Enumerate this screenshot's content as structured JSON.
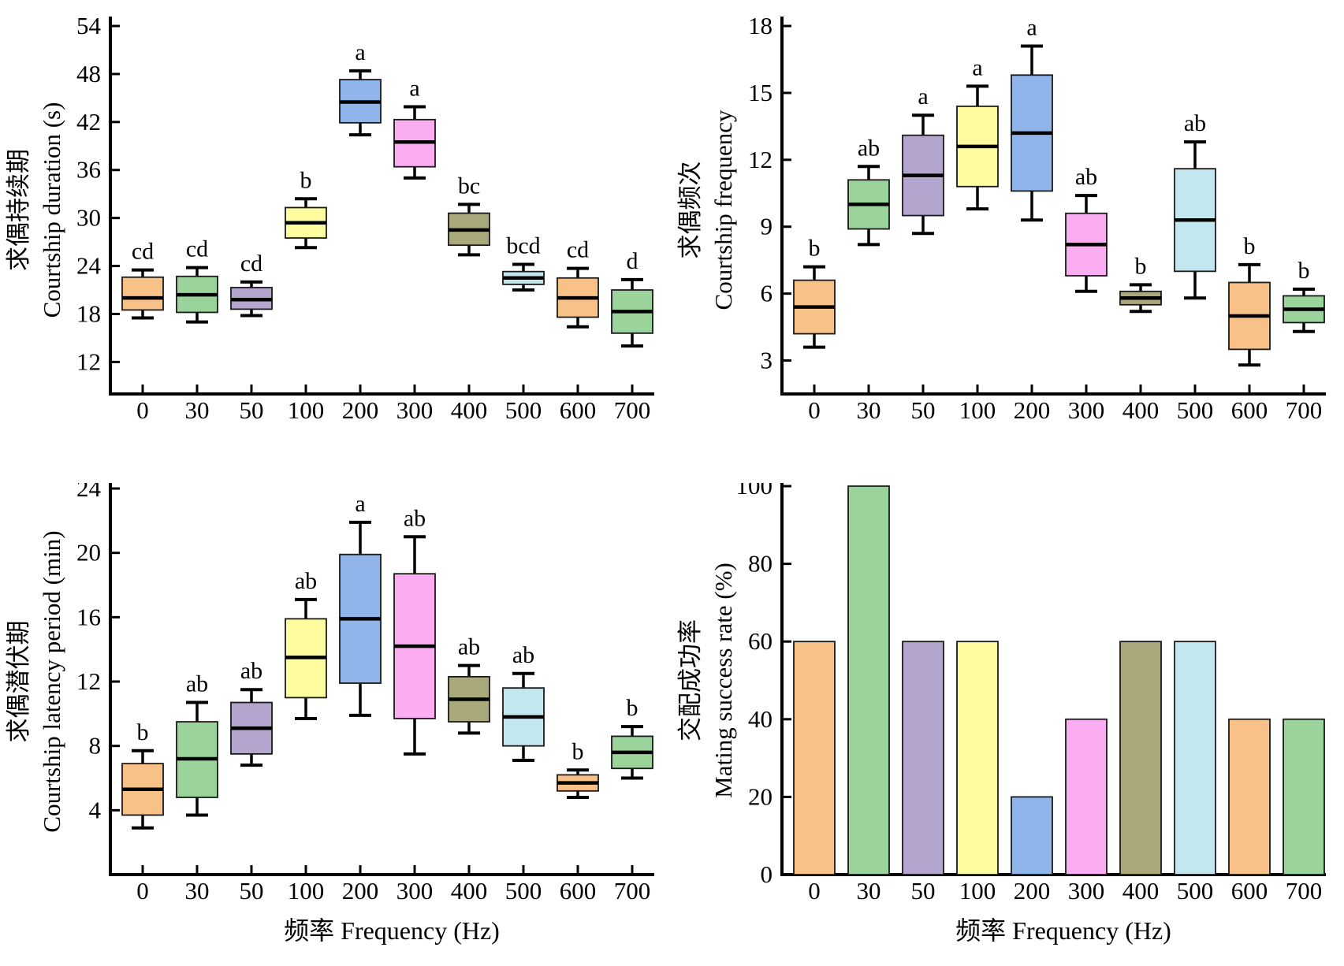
{
  "figure": {
    "xlabel": "频率 Frequency (Hz)",
    "categories": [
      "0",
      "30",
      "50",
      "100",
      "200",
      "300",
      "400",
      "500",
      "600",
      "700"
    ],
    "colors": [
      "#F8C188",
      "#9AD49A",
      "#B4A5CF",
      "#FDFDA0",
      "#8FB5EB",
      "#FBADF2",
      "#A9A87B",
      "#C2E7EE",
      "#F8C188",
      "#9AD49A"
    ],
    "axis_color": "#000000",
    "box_border_color": "#1a1a1a"
  },
  "chart_data": [
    {
      "id": "courtship-duration",
      "type": "box",
      "ylabel_cn": "求偶持续期",
      "ylabel_en": "Courtship duration (s)",
      "ylim": [
        8,
        54
      ],
      "yticks": [
        12,
        18,
        24,
        30,
        36,
        42,
        48,
        54
      ],
      "show_xlabel": false,
      "categories": [
        "0",
        "30",
        "50",
        "100",
        "200",
        "300",
        "400",
        "500",
        "600",
        "700"
      ],
      "boxes": [
        {
          "low": 17.5,
          "q1": 18.5,
          "median": 20.0,
          "q3": 22.6,
          "high": 23.5,
          "sig": "cd"
        },
        {
          "low": 17.0,
          "q1": 18.2,
          "median": 20.4,
          "q3": 22.7,
          "high": 23.8,
          "sig": "cd"
        },
        {
          "low": 17.8,
          "q1": 18.6,
          "median": 19.8,
          "q3": 21.3,
          "high": 22.0,
          "sig": "cd"
        },
        {
          "low": 26.3,
          "q1": 27.5,
          "median": 29.4,
          "q3": 31.3,
          "high": 32.4,
          "sig": "b"
        },
        {
          "low": 40.4,
          "q1": 41.9,
          "median": 44.5,
          "q3": 47.3,
          "high": 48.4,
          "sig": "a"
        },
        {
          "low": 35.0,
          "q1": 36.4,
          "median": 39.5,
          "q3": 42.3,
          "high": 43.9,
          "sig": "a"
        },
        {
          "low": 25.4,
          "q1": 26.6,
          "median": 28.5,
          "q3": 30.6,
          "high": 31.7,
          "sig": "bc"
        },
        {
          "low": 21.0,
          "q1": 21.7,
          "median": 22.5,
          "q3": 23.3,
          "high": 24.2,
          "sig": "bcd"
        },
        {
          "low": 16.4,
          "q1": 17.6,
          "median": 20.0,
          "q3": 22.5,
          "high": 23.7,
          "sig": "cd"
        },
        {
          "low": 14.0,
          "q1": 15.6,
          "median": 18.3,
          "q3": 21.0,
          "high": 22.3,
          "sig": "d"
        }
      ]
    },
    {
      "id": "courtship-frequency",
      "type": "box",
      "ylabel_cn": "求偶频次",
      "ylabel_en": "Courtship frequency",
      "ylim": [
        1.5,
        18
      ],
      "yticks": [
        3,
        6,
        9,
        12,
        15,
        18
      ],
      "show_xlabel": false,
      "categories": [
        "0",
        "30",
        "50",
        "100",
        "200",
        "300",
        "400",
        "500",
        "600",
        "700"
      ],
      "boxes": [
        {
          "low": 3.6,
          "q1": 4.2,
          "median": 5.4,
          "q3": 6.6,
          "high": 7.2,
          "sig": "b"
        },
        {
          "low": 8.2,
          "q1": 8.9,
          "median": 10.0,
          "q3": 11.1,
          "high": 11.7,
          "sig": "ab"
        },
        {
          "low": 8.7,
          "q1": 9.5,
          "median": 11.3,
          "q3": 13.1,
          "high": 14.0,
          "sig": "a"
        },
        {
          "low": 9.8,
          "q1": 10.8,
          "median": 12.6,
          "q3": 14.4,
          "high": 15.3,
          "sig": "a"
        },
        {
          "low": 9.3,
          "q1": 10.6,
          "median": 13.2,
          "q3": 15.8,
          "high": 17.1,
          "sig": "a"
        },
        {
          "low": 6.1,
          "q1": 6.8,
          "median": 8.2,
          "q3": 9.6,
          "high": 10.4,
          "sig": "ab"
        },
        {
          "low": 5.2,
          "q1": 5.5,
          "median": 5.8,
          "q3": 6.1,
          "high": 6.4,
          "sig": "b"
        },
        {
          "low": 5.8,
          "q1": 7.0,
          "median": 9.3,
          "q3": 11.6,
          "high": 12.8,
          "sig": "ab"
        },
        {
          "low": 2.8,
          "q1": 3.5,
          "median": 5.0,
          "q3": 6.5,
          "high": 7.3,
          "sig": "b"
        },
        {
          "low": 4.3,
          "q1": 4.7,
          "median": 5.3,
          "q3": 5.9,
          "high": 6.2,
          "sig": "b"
        }
      ]
    },
    {
      "id": "courtship-latency-period",
      "type": "box",
      "ylabel_cn": "求偶潜伏期",
      "ylabel_en": "Courtship latency period (min)",
      "ylim": [
        0,
        24
      ],
      "yticks": [
        4,
        8,
        12,
        16,
        20,
        24
      ],
      "show_xlabel": true,
      "categories": [
        "0",
        "30",
        "50",
        "100",
        "200",
        "300",
        "400",
        "500",
        "600",
        "700"
      ],
      "boxes": [
        {
          "low": 2.9,
          "q1": 3.7,
          "median": 5.3,
          "q3": 6.9,
          "high": 7.7,
          "sig": "b"
        },
        {
          "low": 3.7,
          "q1": 4.8,
          "median": 7.2,
          "q3": 9.5,
          "high": 10.7,
          "sig": "ab"
        },
        {
          "low": 6.8,
          "q1": 7.5,
          "median": 9.1,
          "q3": 10.7,
          "high": 11.5,
          "sig": "ab"
        },
        {
          "low": 9.7,
          "q1": 11.0,
          "median": 13.5,
          "q3": 15.9,
          "high": 17.1,
          "sig": "ab"
        },
        {
          "low": 9.9,
          "q1": 11.9,
          "median": 15.9,
          "q3": 19.9,
          "high": 21.9,
          "sig": "a"
        },
        {
          "low": 7.5,
          "q1": 9.7,
          "median": 14.2,
          "q3": 18.7,
          "high": 21.0,
          "sig": "ab"
        },
        {
          "low": 8.8,
          "q1": 9.5,
          "median": 10.9,
          "q3": 12.3,
          "high": 13.0,
          "sig": "ab"
        },
        {
          "low": 7.1,
          "q1": 8.0,
          "median": 9.8,
          "q3": 11.6,
          "high": 12.5,
          "sig": "ab"
        },
        {
          "low": 4.8,
          "q1": 5.2,
          "median": 5.7,
          "q3": 6.2,
          "high": 6.5,
          "sig": "b"
        },
        {
          "low": 6.0,
          "q1": 6.6,
          "median": 7.6,
          "q3": 8.6,
          "high": 9.2,
          "sig": "b"
        }
      ]
    },
    {
      "id": "mating-success-rate",
      "type": "bar",
      "ylabel_cn": "交配成功率",
      "ylabel_en": "Mating success rate (%)",
      "ylim": [
        0,
        100
      ],
      "yticks": [
        0,
        20,
        40,
        60,
        80,
        100
      ],
      "show_xlabel": true,
      "categories": [
        "0",
        "30",
        "50",
        "100",
        "200",
        "300",
        "400",
        "500",
        "600",
        "700"
      ],
      "values": [
        60,
        100,
        60,
        60,
        20,
        40,
        60,
        60,
        40,
        40
      ]
    }
  ]
}
